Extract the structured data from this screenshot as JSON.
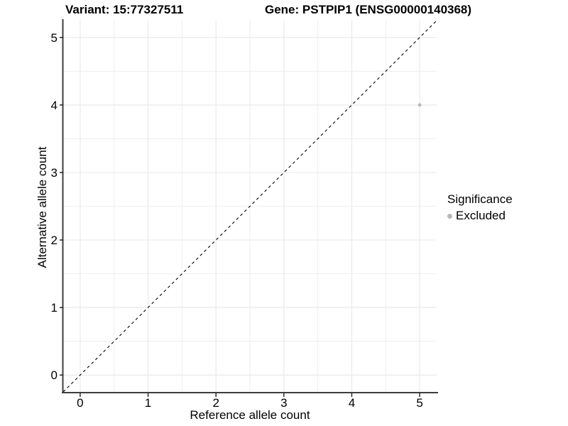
{
  "chart_data": {
    "type": "scatter",
    "title_left": "Variant: 15:77327511",
    "title_right": "Gene: PSTPIP1 (ENSG00000140368)",
    "xlabel": "Reference allele count",
    "ylabel": "Alternative allele count",
    "xlim": [
      -0.25,
      5.25
    ],
    "ylim": [
      -0.25,
      5.25
    ],
    "xticks": [
      0,
      1,
      2,
      3,
      4,
      5
    ],
    "yticks": [
      0,
      1,
      2,
      3,
      4,
      5
    ],
    "minor_step": 0.5,
    "grid": true,
    "points": [
      {
        "x": 5,
        "y": 4,
        "series": "Excluded"
      }
    ],
    "reference_line": {
      "type": "identity",
      "style": "dashed",
      "from": [
        -0.25,
        -0.25
      ],
      "to": [
        5.25,
        5.25
      ]
    },
    "legend": {
      "title": "Significance",
      "position": "right",
      "items": [
        {
          "label": "Excluded",
          "color": "#b8b8b8"
        }
      ]
    },
    "colors": {
      "point": "#b8b8b8",
      "grid": "#eaeaea",
      "axis": "#3d3d3d",
      "tick": "#1a1a1a",
      "text": "#000000",
      "reference_line": "#000000"
    }
  }
}
